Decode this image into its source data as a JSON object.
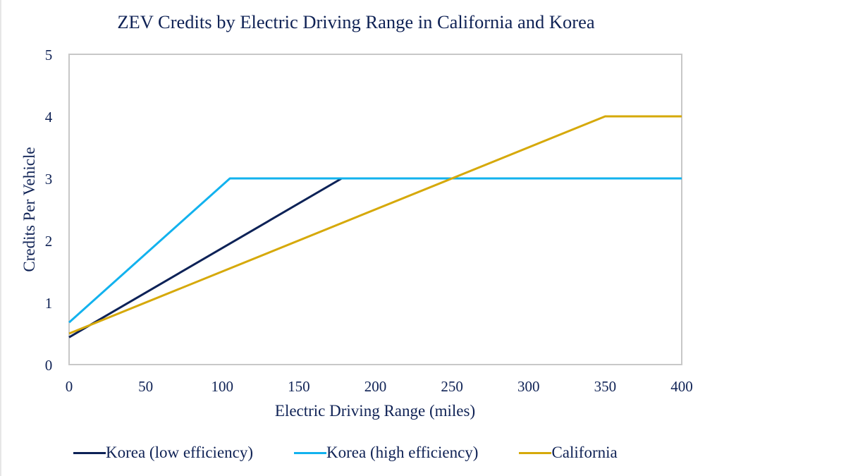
{
  "chart_data": {
    "type": "line",
    "title": "ZEV Credits by Electric Driving Range in California and Korea",
    "xlabel": "Electric Driving Range (miles)",
    "ylabel": "Credits Per Vehicle",
    "xlim": [
      0,
      400
    ],
    "ylim": [
      0,
      5
    ],
    "xticks": [
      0,
      50,
      100,
      150,
      200,
      250,
      300,
      350,
      400
    ],
    "yticks": [
      0,
      1,
      2,
      3,
      4,
      5
    ],
    "grid": false,
    "legend_position": "bottom",
    "series": [
      {
        "name": "Korea (low efficiency)",
        "color": "#0d2257",
        "x": [
          0,
          178,
          400
        ],
        "y": [
          0.44,
          3.0,
          3.0
        ]
      },
      {
        "name": "Korea (high efficiency)",
        "color": "#12b2ee",
        "x": [
          0,
          105,
          400
        ],
        "y": [
          0.68,
          3.0,
          3.0
        ]
      },
      {
        "name": "California",
        "color": "#d6a90a",
        "x": [
          0,
          350,
          400
        ],
        "y": [
          0.5,
          4.0,
          4.0
        ]
      }
    ]
  }
}
